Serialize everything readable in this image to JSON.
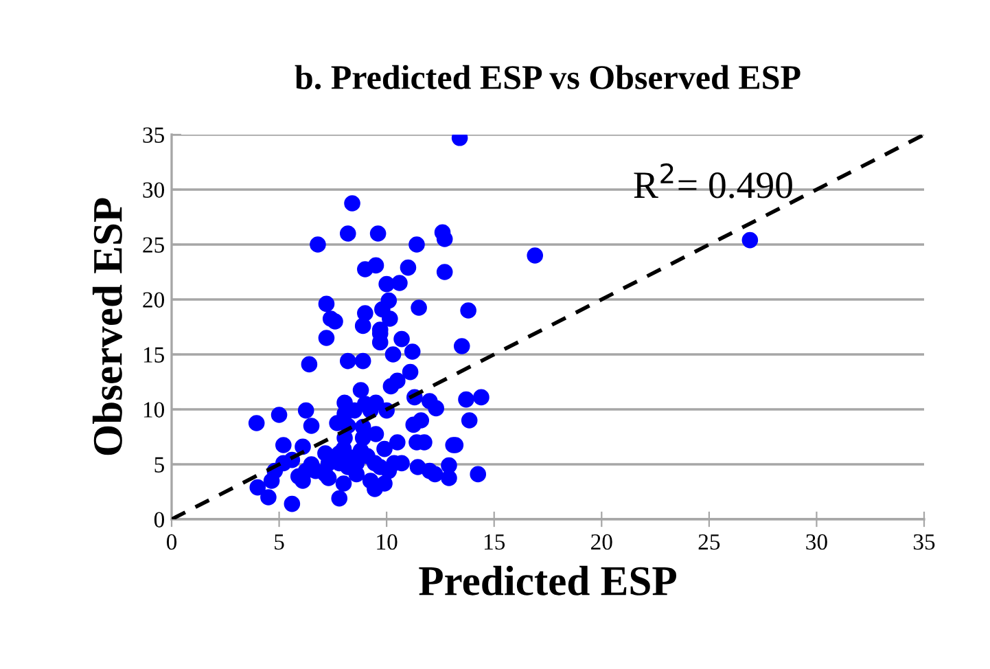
{
  "chart_data": {
    "type": "scatter",
    "title": "b. Predicted ESP vs Observed ESP",
    "xlabel": "Predicted ESP",
    "ylabel": "Observed ESP",
    "annotations": [
      "R$^{2}$= 0.490"
    ],
    "xlim": [
      0,
      35
    ],
    "ylim": [
      0,
      35
    ],
    "xticks": [
      0,
      5,
      10,
      15,
      20,
      25,
      30,
      35
    ],
    "yticks": [
      0,
      5,
      10,
      15,
      20,
      25,
      30,
      35
    ],
    "grid": "y",
    "marker": "circle",
    "legend": false,
    "series": [
      {
        "color": "#0000ff",
        "x": [
          13.4,
          26.9,
          16.9,
          8.4,
          8.2,
          9.6,
          6.8,
          11.4,
          12.6,
          12.7,
          9.0,
          9.5,
          11.0,
          10.0,
          10.6,
          12.7,
          7.2,
          7.4,
          7.6,
          9.0,
          9.8,
          10.1,
          10.15,
          11.5,
          13.8,
          8.9,
          9.7,
          13.5,
          13.7,
          14.4,
          13.85,
          13.2,
          14.25,
          9.7,
          9.7,
          10.7,
          7.2,
          10.3,
          11.2,
          6.4,
          8.2,
          8.9,
          11.1,
          10.5,
          10.2,
          8.8,
          11.3,
          12.0,
          12.3,
          8.05,
          9.0,
          9.5,
          10.0,
          9.25,
          8.5,
          8.05,
          7.7,
          8.2,
          6.25,
          5.0,
          3.95,
          6.5,
          11.25,
          11.6,
          8.9,
          8.9,
          9.5,
          8.05,
          10.5,
          11.4,
          11.75,
          13.1,
          5.2,
          6.1,
          8.0,
          9.9,
          7.15,
          5.2,
          5.6,
          6.5,
          7.8,
          8.6,
          9.45,
          10.35,
          10.7,
          12.9,
          11.45,
          12.0,
          12.25,
          12.9,
          4.8,
          4.65,
          4.0,
          4.5,
          5.6,
          7.8,
          6.1,
          7.3,
          8.0,
          9.25,
          9.45,
          9.9,
          8.6,
          7.15,
          10.1,
          6.7,
          6.25,
          5.9,
          7.8,
          8.4,
          9.1,
          9.7,
          8.2,
          7.3,
          8.8
        ],
        "values": [
          34.7,
          25.4,
          24.0,
          28.75,
          26.0,
          26.0,
          25.0,
          25.0,
          26.1,
          25.5,
          22.75,
          23.1,
          22.9,
          21.4,
          21.5,
          22.5,
          19.6,
          18.25,
          18.0,
          18.75,
          19.1,
          19.9,
          18.25,
          19.25,
          19.0,
          17.6,
          17.25,
          15.75,
          10.9,
          11.1,
          9.0,
          6.75,
          4.1,
          16.9,
          16.1,
          16.4,
          16.5,
          15.0,
          15.25,
          14.1,
          14.4,
          14.4,
          13.4,
          12.6,
          12.1,
          11.75,
          11.1,
          10.75,
          10.1,
          10.6,
          10.5,
          10.6,
          9.9,
          9.9,
          9.9,
          9.6,
          8.75,
          8.5,
          9.9,
          9.5,
          8.75,
          8.5,
          8.6,
          9.0,
          8.4,
          7.4,
          7.75,
          7.4,
          7.0,
          7.0,
          7.0,
          6.75,
          6.75,
          6.6,
          6.4,
          6.4,
          6.0,
          5.1,
          5.4,
          5.0,
          5.1,
          5.1,
          5.1,
          5.1,
          5.1,
          4.9,
          4.75,
          4.4,
          4.1,
          3.75,
          4.4,
          3.5,
          2.9,
          2.0,
          1.4,
          1.9,
          3.5,
          3.75,
          3.25,
          3.5,
          2.75,
          3.25,
          4.1,
          4.1,
          4.4,
          4.4,
          4.4,
          3.9,
          6.0,
          5.6,
          5.75,
          4.75,
          4.75,
          5.1,
          6.25
        ]
      },
      {
        "type": "line",
        "color": "#000000",
        "line_style": "dashed",
        "marker": "none",
        "x": [
          0,
          35
        ],
        "values": [
          0,
          35
        ]
      }
    ]
  }
}
